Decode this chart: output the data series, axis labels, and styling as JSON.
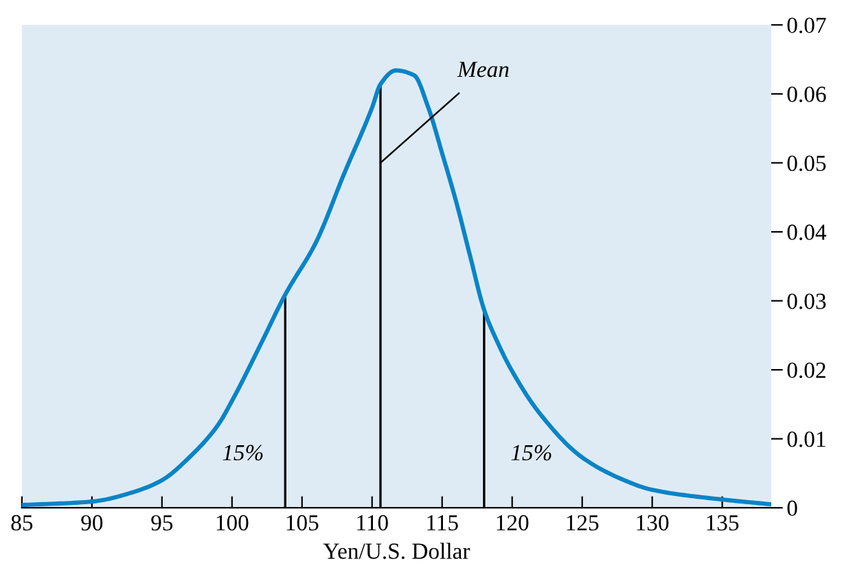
{
  "chart_data": {
    "type": "line",
    "xlabel": "Yen/U.S. Dollar",
    "x": [
      85,
      90,
      93,
      95,
      97,
      99,
      100,
      102,
      103.8,
      106,
      108,
      110,
      110.6,
      111.7,
      113,
      114,
      115,
      116,
      117,
      118,
      119,
      120,
      122,
      125,
      128,
      130,
      135,
      138.5
    ],
    "series": [
      {
        "color": "#0a84c6",
        "values": [
          0.0004,
          0.0009,
          0.0023,
          0.004,
          0.0074,
          0.012,
          0.0155,
          0.0235,
          0.0309,
          0.0385,
          0.0484,
          0.058,
          0.0614,
          0.0634,
          0.0627,
          0.0581,
          0.0514,
          0.0444,
          0.0365,
          0.0287,
          0.0238,
          0.0198,
          0.0136,
          0.0073,
          0.004,
          0.0026,
          0.0012,
          0.0005
        ]
      }
    ],
    "xlim": [
      85,
      138.5
    ],
    "xticks": [
      85,
      90,
      95,
      100,
      105,
      110,
      115,
      120,
      125,
      130,
      135
    ],
    "ylim": [
      0,
      0.07
    ],
    "yticks": [
      0,
      0.01,
      0.02,
      0.03,
      0.04,
      0.05,
      0.06,
      0.07
    ],
    "ref_lines": [
      {
        "axis": "x",
        "value": 103.8
      },
      {
        "axis": "x",
        "value": 110.6
      },
      {
        "axis": "x",
        "value": 118
      }
    ],
    "annotations": [
      {
        "text": "Mean",
        "x": 110.6,
        "y": 0.05
      },
      "15%",
      "15%"
    ],
    "grid": false,
    "legend": false,
    "marker": "none",
    "line_style": "solid"
  }
}
